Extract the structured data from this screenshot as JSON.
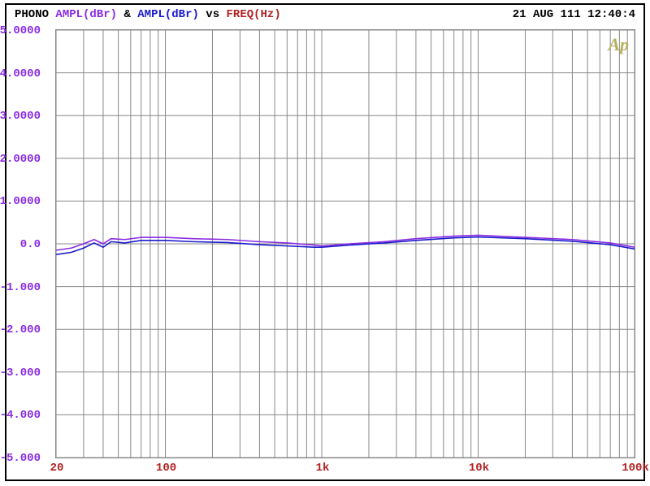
{
  "header": {
    "prefix": "PHONO",
    "series1_label": "AMPL(dBr)",
    "amp_sep": "&",
    "series2_label": "AMPL(dBr)",
    "vs": "vs",
    "xlabel": "FREQ(Hz)",
    "timestamp": "21 AUG 111 12:40:4"
  },
  "colors": {
    "prefix": "#000000",
    "series1": "#8a2be2",
    "series2": "#1a1acc",
    "vs": "#000000",
    "xlabel": "#b22222",
    "timestamp": "#000000",
    "ytick": "#8a2be2",
    "xtick": "#b22222",
    "grid": "#888888",
    "line1": "#8a2be2",
    "line2": "#1a1acc",
    "logo": "#b8b060",
    "background": "#ffffff"
  },
  "chart": {
    "type": "line-logx",
    "ylim": [
      -5,
      5
    ],
    "ytick_step": 1,
    "yticks": [
      "5.0000",
      "4.0000",
      "3.0000",
      "2.0000",
      "1.0000",
      "0.0",
      "-1.000",
      "-2.000",
      "-3.000",
      "-4.000",
      "-5.000"
    ],
    "xmin": 20,
    "xmax": 100000,
    "xticks_major": [
      {
        "v": 20,
        "label": "20"
      },
      {
        "v": 100,
        "label": "100"
      },
      {
        "v": 1000,
        "label": "1k"
      },
      {
        "v": 10000,
        "label": "10k"
      },
      {
        "v": 100000,
        "label": "100k"
      }
    ],
    "xticks_minor": [
      30,
      40,
      50,
      60,
      70,
      80,
      90,
      200,
      300,
      400,
      500,
      600,
      700,
      800,
      900,
      2000,
      3000,
      4000,
      5000,
      6000,
      7000,
      8000,
      9000,
      20000,
      30000,
      40000,
      50000,
      60000,
      70000,
      80000,
      90000
    ],
    "series1_xy": [
      [
        20,
        -0.15
      ],
      [
        25,
        -0.1
      ],
      [
        30,
        0.0
      ],
      [
        35,
        0.1
      ],
      [
        40,
        0.0
      ],
      [
        45,
        0.12
      ],
      [
        55,
        0.1
      ],
      [
        70,
        0.15
      ],
      [
        100,
        0.15
      ],
      [
        150,
        0.12
      ],
      [
        250,
        0.1
      ],
      [
        400,
        0.05
      ],
      [
        600,
        0.02
      ],
      [
        900,
        -0.03
      ],
      [
        1000,
        -0.05
      ],
      [
        1500,
        0.0
      ],
      [
        2500,
        0.05
      ],
      [
        4000,
        0.12
      ],
      [
        7000,
        0.18
      ],
      [
        10000,
        0.2
      ],
      [
        20000,
        0.15
      ],
      [
        40000,
        0.1
      ],
      [
        70000,
        0.02
      ],
      [
        100000,
        -0.08
      ]
    ],
    "series2_xy": [
      [
        20,
        -0.25
      ],
      [
        25,
        -0.2
      ],
      [
        30,
        -0.1
      ],
      [
        35,
        0.02
      ],
      [
        40,
        -0.08
      ],
      [
        45,
        0.05
      ],
      [
        55,
        0.02
      ],
      [
        70,
        0.08
      ],
      [
        100,
        0.08
      ],
      [
        150,
        0.05
      ],
      [
        250,
        0.03
      ],
      [
        400,
        -0.02
      ],
      [
        600,
        -0.05
      ],
      [
        900,
        -0.08
      ],
      [
        1000,
        -0.08
      ],
      [
        1500,
        -0.03
      ],
      [
        2500,
        0.02
      ],
      [
        4000,
        0.08
      ],
      [
        7000,
        0.14
      ],
      [
        10000,
        0.16
      ],
      [
        20000,
        0.12
      ],
      [
        40000,
        0.06
      ],
      [
        70000,
        -0.02
      ],
      [
        100000,
        -0.12
      ]
    ],
    "line_width": 1.6
  },
  "logo": {
    "text": "Ap"
  }
}
